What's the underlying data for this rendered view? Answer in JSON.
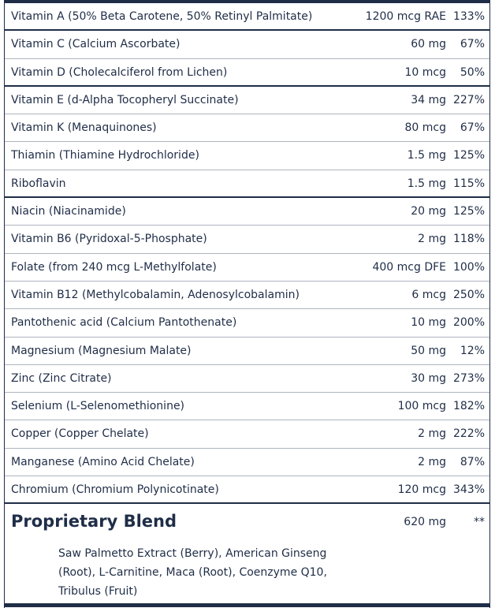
{
  "nutrients": [
    {
      "name": "Vitamin A (50% Beta Carotene, 50% Retinyl Palmitate)",
      "amount": "1200 mcg RAE",
      "dv": "133%"
    },
    {
      "name": "Vitamin C (Calcium Ascorbate)",
      "amount": "60 mg",
      "dv": "67%"
    },
    {
      "name": "Vitamin D (Cholecalciferol from Lichen)",
      "amount": "10 mcg",
      "dv": "50%"
    },
    {
      "name": "Vitamin E (d-Alpha Tocopheryl Succinate)",
      "amount": "34 mg",
      "dv": "227%"
    },
    {
      "name": "Vitamin K (Menaquinones)",
      "amount": "80 mcg",
      "dv": "67%"
    },
    {
      "name": "Thiamin (Thiamine Hydrochloride)",
      "amount": "1.5 mg",
      "dv": "125%"
    },
    {
      "name": "Riboflavin",
      "amount": "1.5 mg",
      "dv": "115%"
    },
    {
      "name": "Niacin (Niacinamide)",
      "amount": "20 mg",
      "dv": "125%"
    },
    {
      "name": "Vitamin B6 (Pyridoxal-5-Phosphate)",
      "amount": "2 mg",
      "dv": "118%"
    },
    {
      "name": "Folate (from 240 mcg L-Methylfolate)",
      "amount": "400 mcg DFE",
      "dv": "100%"
    },
    {
      "name": "Vitamin B12 (Methylcobalamin, Adenosylcobalamin)",
      "amount": "6 mcg",
      "dv": "250%"
    },
    {
      "name": "Pantothenic acid (Calcium Pantothenate)",
      "amount": "10 mg",
      "dv": "200%"
    },
    {
      "name": "Magnesium (Magnesium Malate)",
      "amount": "50 mg",
      "dv": "12%"
    },
    {
      "name": "Zinc (Zinc Citrate)",
      "amount": "30 mg",
      "dv": "273%"
    },
    {
      "name": "Selenium (L-Selenomethionine)",
      "amount": "100 mcg",
      "dv": "182%"
    },
    {
      "name": "Copper (Copper Chelate)",
      "amount": "2 mg",
      "dv": "222%"
    },
    {
      "name": "Manganese (Amino Acid Chelate)",
      "amount": "2 mg",
      "dv": "87%"
    },
    {
      "name": "Chromium (Chromium Polynicotinate)",
      "amount": "120 mcg",
      "dv": "343%"
    }
  ],
  "blend": {
    "title": "Proprietary Blend",
    "amount": "620 mg",
    "dv": "**",
    "ingredients": "Saw Palmetto Extract (Berry), American Ginseng (Root), L-Carnitine, Maca (Root), Coenzyme Q10, Tribulus (Fruit)"
  },
  "colors": {
    "text": "#1f2d47",
    "rule": "#1f2d47",
    "thin_rule": "#aeb4bf"
  }
}
